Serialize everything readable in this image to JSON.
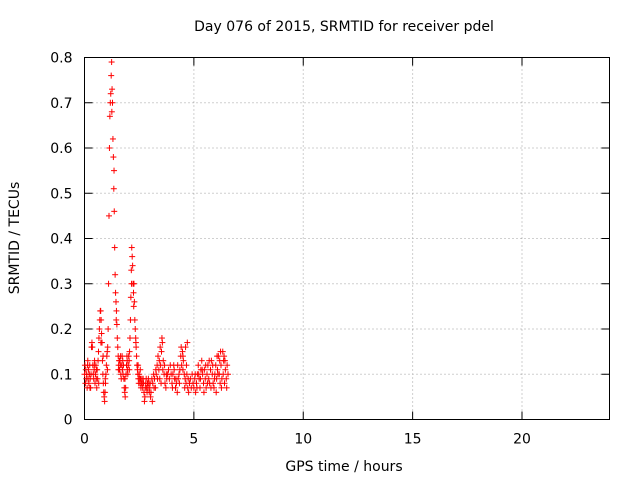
{
  "chart_data": {
    "type": "scatter",
    "title": "Day 076 of 2015, SRMTID for receiver pdel",
    "xlabel": "GPS time / hours",
    "ylabel": "SRMTID / TECUs",
    "xlim": [
      0,
      24
    ],
    "ylim": [
      0,
      0.8
    ],
    "xticks": [
      0,
      5,
      10,
      15,
      20
    ],
    "xtick_labels": [
      "0",
      "5",
      "10",
      "15",
      "20"
    ],
    "yticks": [
      0,
      0.1,
      0.2,
      0.3,
      0.4,
      0.5,
      0.6,
      0.7,
      0.8
    ],
    "ytick_labels": [
      "0",
      "0.1",
      "0.2",
      "0.3",
      "0.4",
      "0.5",
      "0.6",
      "0.7",
      "0.8"
    ],
    "grid": true,
    "marker": "+",
    "series": [
      {
        "name": "SRMTID",
        "color": "#ff0000",
        "points": [
          [
            0.0,
            0.1
          ],
          [
            0.02,
            0.12
          ],
          [
            0.04,
            0.08
          ],
          [
            0.06,
            0.11
          ],
          [
            0.08,
            0.09
          ],
          [
            0.1,
            0.1
          ],
          [
            0.12,
            0.07
          ],
          [
            0.14,
            0.12
          ],
          [
            0.16,
            0.09
          ],
          [
            0.18,
            0.11
          ],
          [
            0.2,
            0.08
          ],
          [
            0.22,
            0.1
          ],
          [
            0.24,
            0.12
          ],
          [
            0.26,
            0.09
          ],
          [
            0.28,
            0.07
          ],
          [
            0.3,
            0.1
          ],
          [
            0.32,
            0.16
          ],
          [
            0.34,
            0.17
          ],
          [
            0.36,
            0.16
          ],
          [
            0.38,
            0.12
          ],
          [
            0.4,
            0.1
          ],
          [
            0.42,
            0.09
          ],
          [
            0.44,
            0.11
          ],
          [
            0.46,
            0.13
          ],
          [
            0.48,
            0.08
          ],
          [
            0.5,
            0.1
          ],
          [
            0.52,
            0.12
          ],
          [
            0.54,
            0.09
          ],
          [
            0.56,
            0.07
          ],
          [
            0.58,
            0.11
          ],
          [
            0.6,
            0.09
          ],
          [
            0.62,
            0.13
          ],
          [
            0.64,
            0.15
          ],
          [
            0.66,
            0.18
          ],
          [
            0.68,
            0.2
          ],
          [
            0.7,
            0.22
          ],
          [
            0.72,
            0.24
          ],
          [
            0.74,
            0.24
          ],
          [
            0.76,
            0.22
          ],
          [
            0.78,
            0.19
          ],
          [
            0.8,
            0.17
          ],
          [
            0.82,
            0.13
          ],
          [
            0.84,
            0.1
          ],
          [
            0.86,
            0.08
          ],
          [
            0.88,
            0.06
          ],
          [
            0.9,
            0.05
          ],
          [
            0.92,
            0.04
          ],
          [
            0.94,
            0.06
          ],
          [
            0.96,
            0.08
          ],
          [
            0.98,
            0.1
          ],
          [
            1.0,
            0.12
          ],
          [
            1.02,
            0.14
          ],
          [
            1.04,
            0.15
          ],
          [
            1.06,
            0.16
          ],
          [
            1.08,
            0.2
          ],
          [
            1.1,
            0.3
          ],
          [
            1.12,
            0.45
          ],
          [
            1.14,
            0.6
          ],
          [
            1.16,
            0.67
          ],
          [
            1.18,
            0.7
          ],
          [
            1.2,
            0.72
          ],
          [
            1.22,
            0.76
          ],
          [
            1.24,
            0.79
          ],
          [
            1.26,
            0.73
          ],
          [
            1.28,
            0.7
          ],
          [
            1.3,
            0.62
          ],
          [
            1.32,
            0.58
          ],
          [
            1.34,
            0.51
          ],
          [
            1.36,
            0.46
          ],
          [
            1.38,
            0.38
          ],
          [
            1.4,
            0.32
          ],
          [
            1.42,
            0.28
          ],
          [
            1.44,
            0.26
          ],
          [
            1.46,
            0.24
          ],
          [
            1.48,
            0.21
          ],
          [
            1.5,
            0.18
          ],
          [
            1.52,
            0.16
          ],
          [
            1.54,
            0.14
          ],
          [
            1.56,
            0.12
          ],
          [
            1.58,
            0.13
          ],
          [
            1.6,
            0.11
          ],
          [
            1.62,
            0.13
          ],
          [
            1.64,
            0.12
          ],
          [
            1.66,
            0.1
          ],
          [
            1.68,
            0.09
          ],
          [
            1.7,
            0.12
          ],
          [
            1.72,
            0.14
          ],
          [
            1.74,
            0.11
          ],
          [
            1.76,
            0.1
          ],
          [
            1.78,
            0.12
          ],
          [
            1.8,
            0.09
          ],
          [
            1.82,
            0.07
          ],
          [
            1.84,
            0.06
          ],
          [
            1.86,
            0.05
          ],
          [
            1.88,
            0.07
          ],
          [
            1.9,
            0.1
          ],
          [
            1.92,
            0.12
          ],
          [
            1.94,
            0.14
          ],
          [
            1.96,
            0.11
          ],
          [
            1.98,
            0.1
          ],
          [
            2.0,
            0.12
          ],
          [
            2.02,
            0.14
          ],
          [
            2.04,
            0.13
          ],
          [
            2.06,
            0.15
          ],
          [
            2.08,
            0.18
          ],
          [
            2.1,
            0.22
          ],
          [
            2.12,
            0.27
          ],
          [
            2.14,
            0.33
          ],
          [
            2.16,
            0.38
          ],
          [
            2.18,
            0.36
          ],
          [
            2.2,
            0.34
          ],
          [
            2.22,
            0.3
          ],
          [
            2.24,
            0.28
          ],
          [
            2.26,
            0.3
          ],
          [
            2.28,
            0.26
          ],
          [
            2.3,
            0.22
          ],
          [
            2.32,
            0.2
          ],
          [
            2.34,
            0.18
          ],
          [
            2.36,
            0.16
          ],
          [
            2.38,
            0.14
          ],
          [
            2.4,
            0.12
          ],
          [
            2.42,
            0.11
          ],
          [
            2.44,
            0.1
          ],
          [
            2.46,
            0.09
          ],
          [
            2.48,
            0.08
          ],
          [
            2.5,
            0.1
          ],
          [
            2.52,
            0.09
          ],
          [
            2.54,
            0.08
          ],
          [
            2.56,
            0.09
          ],
          [
            2.58,
            0.07
          ],
          [
            2.6,
            0.08
          ],
          [
            2.62,
            0.09
          ],
          [
            2.64,
            0.08
          ],
          [
            2.66,
            0.07
          ],
          [
            2.68,
            0.09
          ],
          [
            2.7,
            0.08
          ],
          [
            2.72,
            0.06
          ],
          [
            2.74,
            0.04
          ],
          [
            2.76,
            0.05
          ],
          [
            2.78,
            0.07
          ],
          [
            2.8,
            0.08
          ],
          [
            2.82,
            0.09
          ],
          [
            2.84,
            0.07
          ],
          [
            2.86,
            0.06
          ],
          [
            2.88,
            0.08
          ],
          [
            2.9,
            0.07
          ],
          [
            2.92,
            0.09
          ],
          [
            2.94,
            0.08
          ],
          [
            2.96,
            0.06
          ],
          [
            2.98,
            0.07
          ],
          [
            3.0,
            0.08
          ],
          [
            3.04,
            0.06
          ],
          [
            3.08,
            0.09
          ],
          [
            3.12,
            0.08
          ],
          [
            3.16,
            0.1
          ],
          [
            3.2,
            0.09
          ],
          [
            3.24,
            0.07
          ],
          [
            3.28,
            0.1
          ],
          [
            3.32,
            0.12
          ],
          [
            3.36,
            0.14
          ],
          [
            3.4,
            0.11
          ],
          [
            3.44,
            0.09
          ],
          [
            3.48,
            0.12
          ],
          [
            3.52,
            0.15
          ],
          [
            3.56,
            0.17
          ],
          [
            3.6,
            0.13
          ],
          [
            3.64,
            0.1
          ],
          [
            3.68,
            0.08
          ],
          [
            3.72,
            0.07
          ],
          [
            3.76,
            0.09
          ],
          [
            3.8,
            0.1
          ],
          [
            3.84,
            0.11
          ],
          [
            3.88,
            0.09
          ],
          [
            3.92,
            0.12
          ],
          [
            3.96,
            0.1
          ],
          [
            4.0,
            0.08
          ],
          [
            4.04,
            0.1
          ],
          [
            4.08,
            0.12
          ],
          [
            4.12,
            0.09
          ],
          [
            4.16,
            0.07
          ],
          [
            4.2,
            0.08
          ],
          [
            4.24,
            0.06
          ],
          [
            4.28,
            0.09
          ],
          [
            4.32,
            0.1
          ],
          [
            4.36,
            0.11
          ],
          [
            4.4,
            0.14
          ],
          [
            4.44,
            0.12
          ],
          [
            4.48,
            0.15
          ],
          [
            4.52,
            0.13
          ],
          [
            4.56,
            0.1
          ],
          [
            4.6,
            0.09
          ],
          [
            4.64,
            0.08
          ],
          [
            4.68,
            0.1
          ],
          [
            4.72,
            0.07
          ],
          [
            4.76,
            0.06
          ],
          [
            4.8,
            0.08
          ],
          [
            4.84,
            0.09
          ],
          [
            4.88,
            0.07
          ],
          [
            4.92,
            0.1
          ],
          [
            4.96,
            0.08
          ],
          [
            5.0,
            0.07
          ],
          [
            5.04,
            0.09
          ],
          [
            5.08,
            0.06
          ],
          [
            5.12,
            0.08
          ],
          [
            5.16,
            0.1
          ],
          [
            5.2,
            0.12
          ],
          [
            5.24,
            0.09
          ],
          [
            5.28,
            0.07
          ],
          [
            5.32,
            0.11
          ],
          [
            5.36,
            0.13
          ],
          [
            5.4,
            0.1
          ],
          [
            5.44,
            0.08
          ],
          [
            5.48,
            0.11
          ],
          [
            5.52,
            0.09
          ],
          [
            5.56,
            0.07
          ],
          [
            5.6,
            0.1
          ],
          [
            5.64,
            0.12
          ],
          [
            5.68,
            0.09
          ],
          [
            5.72,
            0.08
          ],
          [
            5.76,
            0.11
          ],
          [
            5.8,
            0.13
          ],
          [
            5.84,
            0.1
          ],
          [
            5.88,
            0.08
          ],
          [
            5.92,
            0.07
          ],
          [
            5.96,
            0.1
          ],
          [
            6.0,
            0.12
          ],
          [
            6.04,
            0.09
          ],
          [
            6.08,
            0.11
          ],
          [
            6.12,
            0.14
          ],
          [
            6.16,
            0.1
          ],
          [
            6.2,
            0.08
          ],
          [
            6.24,
            0.12
          ],
          [
            6.28,
            0.09
          ],
          [
            6.32,
            0.15
          ],
          [
            6.36,
            0.13
          ],
          [
            6.4,
            0.08
          ],
          [
            6.44,
            0.11
          ],
          [
            6.48,
            0.09
          ],
          [
            6.52,
            0.12
          ],
          [
            6.56,
            0.1
          ],
          [
            3.02,
            0.05
          ],
          [
            3.1,
            0.04
          ],
          [
            3.18,
            0.07
          ],
          [
            3.26,
            0.11
          ],
          [
            3.34,
            0.09
          ],
          [
            3.42,
            0.13
          ],
          [
            3.5,
            0.08
          ],
          [
            3.58,
            0.11
          ],
          [
            3.66,
            0.12
          ],
          [
            3.74,
            0.1
          ],
          [
            4.02,
            0.07
          ],
          [
            4.1,
            0.11
          ],
          [
            4.18,
            0.09
          ],
          [
            4.26,
            0.12
          ],
          [
            4.34,
            0.08
          ],
          [
            4.42,
            0.16
          ],
          [
            4.5,
            0.11
          ],
          [
            4.58,
            0.07
          ],
          [
            4.66,
            0.12
          ],
          [
            4.74,
            0.09
          ],
          [
            4.5,
            0.14
          ],
          [
            4.62,
            0.16
          ],
          [
            4.7,
            0.17
          ],
          [
            3.54,
            0.18
          ],
          [
            3.46,
            0.16
          ],
          [
            5.06,
            0.1
          ],
          [
            5.14,
            0.07
          ],
          [
            5.22,
            0.1
          ],
          [
            5.3,
            0.09
          ],
          [
            5.38,
            0.11
          ],
          [
            5.46,
            0.06
          ],
          [
            5.54,
            0.12
          ],
          [
            5.62,
            0.08
          ],
          [
            5.7,
            0.13
          ],
          [
            5.78,
            0.07
          ],
          [
            5.86,
            0.12
          ],
          [
            5.94,
            0.09
          ],
          [
            6.02,
            0.06
          ],
          [
            6.1,
            0.1
          ],
          [
            6.18,
            0.13
          ],
          [
            6.26,
            0.07
          ],
          [
            6.34,
            0.1
          ],
          [
            6.42,
            0.13
          ],
          [
            6.5,
            0.07
          ],
          [
            6.06,
            0.14
          ],
          [
            6.22,
            0.15
          ],
          [
            6.38,
            0.14
          ],
          [
            0.15,
            0.13
          ],
          [
            0.25,
            0.07
          ],
          [
            0.45,
            0.12
          ],
          [
            0.55,
            0.11
          ],
          [
            0.65,
            0.08
          ],
          [
            0.75,
            0.17
          ],
          [
            0.85,
            0.14
          ],
          [
            0.95,
            0.09
          ],
          [
            1.05,
            0.11
          ],
          [
            1.25,
            0.68
          ],
          [
            1.35,
            0.55
          ],
          [
            1.45,
            0.22
          ],
          [
            1.55,
            0.11
          ],
          [
            1.65,
            0.14
          ],
          [
            1.75,
            0.13
          ],
          [
            1.85,
            0.09
          ],
          [
            1.95,
            0.13
          ],
          [
            2.05,
            0.11
          ],
          [
            2.15,
            0.3
          ],
          [
            2.25,
            0.25
          ],
          [
            2.35,
            0.17
          ],
          [
            2.45,
            0.12
          ],
          [
            2.55,
            0.11
          ]
        ]
      }
    ]
  }
}
